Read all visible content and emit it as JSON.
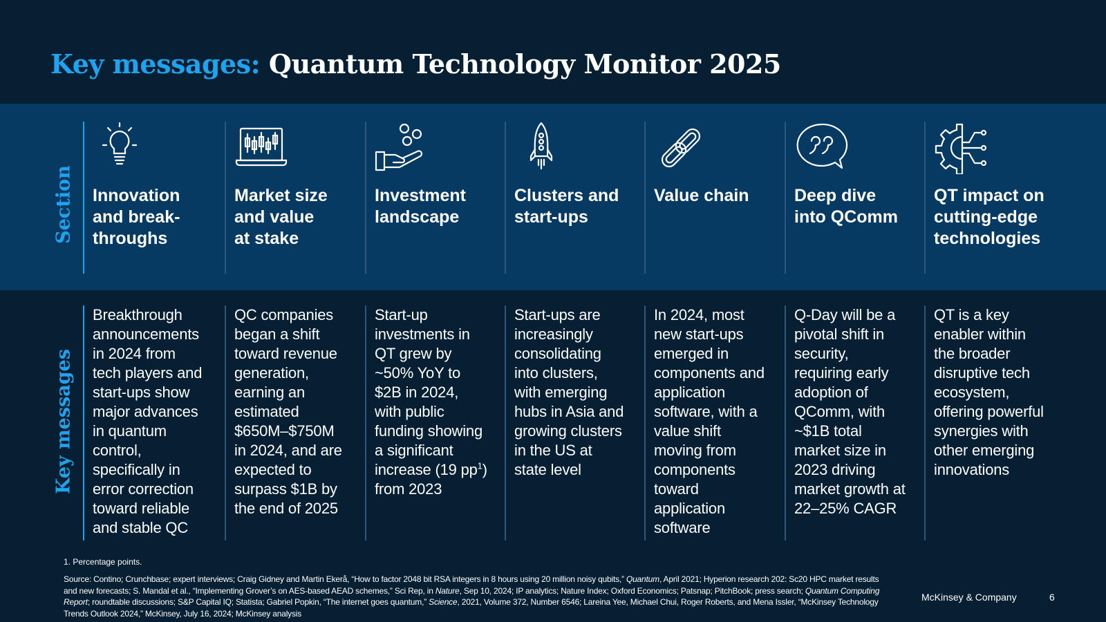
{
  "header": {
    "title_accent": "Key messages:",
    "title_rest": "Quantum Technology Monitor 2025"
  },
  "row_labels": {
    "section": "Section",
    "key_messages": "Key messages"
  },
  "columns": [
    {
      "icon": "lightbulb-icon",
      "heading": "Innovation\nand break-\nthroughs",
      "message": "Breakthrough\nannouncements\nin 2024 from\ntech players and\nstart-ups show\nmajor advances\nin quantum\ncontrol,\nspecifically in\nerror correction\ntoward reliable\nand stable QC"
    },
    {
      "icon": "candlestick-chart-icon",
      "heading": "Market size\nand value\nat stake",
      "message": "QC companies\nbegan a shift\ntoward revenue\ngeneration,\nearning an\nestimated\n$650M–$750M\nin 2024, and are\nexpected to\nsurpass $1B by\nthe end of 2025"
    },
    {
      "icon": "hand-coins-icon",
      "heading": "Investment\nlandscape",
      "message_pre": "Start-up\ninvestments in\nQT grew by\n~50% YoY to\n$2B in 2024,\nwith public\nfunding showing\na significant\nincrease (19 pp",
      "message_sup": "1",
      "message_post": ")\nfrom 2023"
    },
    {
      "icon": "rocket-icon",
      "heading": "Clusters and\nstart-ups",
      "message": "Start-ups are\nincreasingly\nconsolidating\ninto clusters,\nwith emerging\nhubs in Asia and\ngrowing clusters\nin the US at\nstate level"
    },
    {
      "icon": "chain-link-icon",
      "heading": "Value chain",
      "message": "In 2024, most\nnew start-ups\nemerged in\ncomponents and\napplication\nsoftware, with a\nvalue shift\nmoving from\ncomponents\ntoward\napplication\nsoftware"
    },
    {
      "icon": "speech-bubble-quote-icon",
      "heading": "Deep dive\ninto QComm",
      "message": "Q-Day will be a\npivotal shift in\nsecurity,\nrequiring early\nadoption of\nQComm, with\n~$1B total\nmarket size in\n2023 driving\nmarket growth at\n22–25% CAGR"
    },
    {
      "icon": "gear-circuit-icon",
      "heading": "QT impact on\ncutting-edge\ntechnologies",
      "message": "QT is a key\nenabler within\nthe broader\ndisruptive tech\necosystem,\noffering powerful\nsynergies with\nother emerging\ninnovations"
    }
  ],
  "footnote": "1. Percentage points.",
  "source": {
    "p1": "Source: Contino; Crunchbase; expert interviews; Craig Gidney and Martin Ekerå, “How to factor 2048 bit RSA integers in 8 hours using 20 million noisy qubits,” ",
    "i1": "Quantum",
    "p2": ", April 2021; Hyperion research 202: Sc20 HPC market results and new forecasts; S. Mandal et al., “Implementing Grover’s on AES-based AEAD schemes,” Sci Rep, in ",
    "i2": "Nature",
    "p3": ", Sep 10, 2024; IP analytics; Nature Index; Oxford Economics; Patsnap; PitchBook; press search; ",
    "i3": "Quantum Computing Report",
    "p4": "; roundtable discussions; S&P Capital IQ; Statista; Gabriel Popkin, “The internet goes quantum,” ",
    "i4": "Science",
    "p5": ", 2021, Volume 372, Number 6546; Lareina Yee, Michael Chui, Roger Roberts, and Mena Issler, “McKinsey Technology Trends Outlook 2024,” McKinsey,  July 16, 2024; McKinsey analysis"
  },
  "footer": {
    "brand": "McKinsey & Company",
    "page_number": "6"
  },
  "colors": {
    "background": "#061F33",
    "band": "#063A63",
    "accent": "#1FA3EE"
  }
}
